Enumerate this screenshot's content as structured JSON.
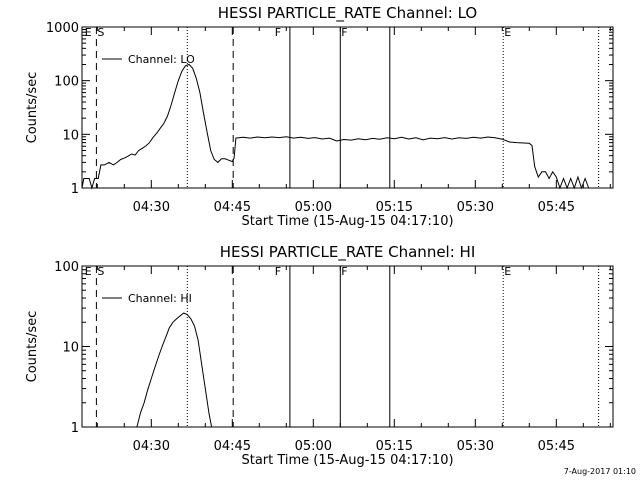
{
  "footer_stamp": "7-Aug-2017 01:10",
  "chart_data": [
    {
      "type": "line",
      "title": "HESSI PARTICLE_RATE Channel: LO",
      "xlabel": "Start Time (15-Aug-15 04:17:10)",
      "ylabel": "Counts/sec",
      "yscale": "log",
      "ylim": [
        1,
        1000
      ],
      "xlim": [
        "04:17:10",
        "05:55:30"
      ],
      "y_ticks": [
        "1",
        "10",
        "100",
        "1000"
      ],
      "x_ticks": [
        "04:30",
        "04:45",
        "05:00",
        "05:15",
        "05:30",
        "05:45"
      ],
      "legend": {
        "label": "Channel: LO",
        "position": "top-left"
      },
      "markers": [
        {
          "label": "E",
          "time": "04:17:30"
        },
        {
          "label": "S",
          "time": "04:19:50"
        },
        {
          "label": "F",
          "time": "04:52:40"
        },
        {
          "label": "F",
          "time": "05:05:00"
        },
        {
          "label": "E",
          "time": "05:35:10"
        }
      ],
      "vlines": [
        {
          "time": "04:19:50",
          "style": "dashed"
        },
        {
          "time": "04:36:40",
          "style": "dotted"
        },
        {
          "time": "04:45:10",
          "style": "dashed"
        },
        {
          "time": "04:55:40",
          "style": "solid"
        },
        {
          "time": "05:05:00",
          "style": "solid"
        },
        {
          "time": "05:14:10",
          "style": "solid"
        },
        {
          "time": "05:35:10",
          "style": "dotted"
        },
        {
          "time": "05:52:50",
          "style": "dotted"
        }
      ],
      "series": [
        {
          "name": "Channel: LO",
          "points": [
            [
              "04:17:10",
              1
            ],
            [
              "04:17:30",
              1.5
            ],
            [
              "04:18:30",
              1.5
            ],
            [
              "04:19:00",
              1
            ],
            [
              "04:19:30",
              1.5
            ],
            [
              "04:20:10",
              1.5
            ],
            [
              "04:20:40",
              2.7
            ],
            [
              "04:21:20",
              2.7
            ],
            [
              "04:22:10",
              3
            ],
            [
              "04:23:00",
              2.7
            ],
            [
              "04:23:40",
              3
            ],
            [
              "04:24:20",
              3.4
            ],
            [
              "04:25:00",
              3.6
            ],
            [
              "04:25:40",
              3.9
            ],
            [
              "04:26:20",
              4.3
            ],
            [
              "04:27:00",
              4.1
            ],
            [
              "04:27:40",
              5
            ],
            [
              "04:28:20",
              5.5
            ],
            [
              "04:29:00",
              6.1
            ],
            [
              "04:29:40",
              7
            ],
            [
              "04:30:20",
              8.8
            ],
            [
              "04:31:00",
              10.5
            ],
            [
              "04:31:40",
              13
            ],
            [
              "04:32:20",
              16
            ],
            [
              "04:33:00",
              22
            ],
            [
              "04:33:40",
              35
            ],
            [
              "04:34:20",
              60
            ],
            [
              "04:35:00",
              100
            ],
            [
              "04:35:40",
              150
            ],
            [
              "04:36:20",
              190
            ],
            [
              "04:37:00",
              200
            ],
            [
              "04:37:40",
              170
            ],
            [
              "04:38:20",
              110
            ],
            [
              "04:39:00",
              60
            ],
            [
              "04:39:40",
              25
            ],
            [
              "04:40:20",
              11
            ],
            [
              "04:41:00",
              5
            ],
            [
              "04:41:40",
              3.4
            ],
            [
              "04:42:20",
              3
            ],
            [
              "04:43:00",
              3.5
            ],
            [
              "04:43:40",
              3.5
            ],
            [
              "04:44:20",
              3.3
            ],
            [
              "04:45:00",
              3.1
            ],
            [
              "04:45:20",
              3.6
            ],
            [
              "04:45:40",
              8.5
            ],
            [
              "04:47:00",
              8.8
            ],
            [
              "04:48:20",
              8.5
            ],
            [
              "04:49:40",
              8.9
            ],
            [
              "04:51:00",
              8.6
            ],
            [
              "04:52:20",
              8.9
            ],
            [
              "04:53:40",
              8.7
            ],
            [
              "04:55:00",
              9
            ],
            [
              "04:56:20",
              8.5
            ],
            [
              "04:57:40",
              8.8
            ],
            [
              "04:59:00",
              8.4
            ],
            [
              "05:00:20",
              8.7
            ],
            [
              "05:01:40",
              8.2
            ],
            [
              "05:03:00",
              8.5
            ],
            [
              "05:04:20",
              7.5
            ],
            [
              "05:05:40",
              8
            ],
            [
              "05:07:00",
              7.8
            ],
            [
              "05:08:20",
              8.3
            ],
            [
              "05:09:40",
              7.9
            ],
            [
              "05:11:00",
              8.4
            ],
            [
              "05:12:20",
              8.1
            ],
            [
              "05:13:40",
              8.6
            ],
            [
              "05:15:00",
              8.3
            ],
            [
              "05:16:20",
              8.8
            ],
            [
              "05:17:40",
              8.2
            ],
            [
              "05:19:00",
              8.6
            ],
            [
              "05:20:20",
              7.9
            ],
            [
              "05:21:40",
              8.5
            ],
            [
              "05:23:00",
              8.3
            ],
            [
              "05:24:20",
              8.7
            ],
            [
              "05:25:40",
              8.2
            ],
            [
              "05:27:00",
              8.6
            ],
            [
              "05:28:20",
              8.4
            ],
            [
              "05:29:40",
              8.8
            ],
            [
              "05:31:00",
              8.5
            ],
            [
              "05:32:20",
              8.9
            ],
            [
              "05:33:40",
              8.6
            ],
            [
              "05:35:00",
              8.1
            ],
            [
              "05:36:20",
              7.2
            ],
            [
              "05:37:40",
              7
            ],
            [
              "05:39:00",
              6.9
            ],
            [
              "05:40:00",
              6.8
            ],
            [
              "05:40:30",
              6.2
            ],
            [
              "05:41:00",
              2.5
            ],
            [
              "05:41:40",
              1.6
            ],
            [
              "05:42:20",
              2
            ],
            [
              "05:43:00",
              2
            ],
            [
              "05:43:40",
              1.5
            ],
            [
              "05:44:20",
              2
            ],
            [
              "05:45:00",
              1.6
            ],
            [
              "05:45:40",
              1
            ],
            [
              "05:46:20",
              1.5
            ],
            [
              "05:47:00",
              1
            ],
            [
              "05:47:40",
              1.5
            ],
            [
              "05:48:20",
              1
            ],
            [
              "05:49:00",
              1.6
            ],
            [
              "05:49:40",
              1
            ],
            [
              "05:50:20",
              1.5
            ],
            [
              "05:51:00",
              1
            ]
          ]
        }
      ]
    },
    {
      "type": "line",
      "title": "HESSI PARTICLE_RATE Channel: HI",
      "xlabel": "Start Time (15-Aug-15 04:17:10)",
      "ylabel": "Counts/sec",
      "yscale": "log",
      "ylim": [
        1,
        100
      ],
      "xlim": [
        "04:17:10",
        "05:55:30"
      ],
      "y_ticks": [
        "1",
        "10",
        "100"
      ],
      "x_ticks": [
        "04:30",
        "04:45",
        "05:00",
        "05:15",
        "05:30",
        "05:45"
      ],
      "legend": {
        "label": "Channel: HI",
        "position": "top-left"
      },
      "markers": [
        {
          "label": "E",
          "time": "04:17:30"
        },
        {
          "label": "S",
          "time": "04:19:50"
        },
        {
          "label": "F",
          "time": "04:52:40"
        },
        {
          "label": "F",
          "time": "05:05:00"
        },
        {
          "label": "E",
          "time": "05:35:10"
        }
      ],
      "vlines": [
        {
          "time": "04:19:50",
          "style": "dashed"
        },
        {
          "time": "04:36:40",
          "style": "dotted"
        },
        {
          "time": "04:45:10",
          "style": "dashed"
        },
        {
          "time": "04:55:40",
          "style": "solid"
        },
        {
          "time": "05:05:00",
          "style": "solid"
        },
        {
          "time": "05:14:10",
          "style": "solid"
        },
        {
          "time": "05:35:10",
          "style": "dotted"
        },
        {
          "time": "05:52:50",
          "style": "dotted"
        }
      ],
      "series": [
        {
          "name": "Channel: HI",
          "points": [
            [
              "04:27:20",
              1
            ],
            [
              "04:28:00",
              1.5
            ],
            [
              "04:28:40",
              2
            ],
            [
              "04:29:20",
              2.9
            ],
            [
              "04:30:00",
              4
            ],
            [
              "04:30:40",
              5.5
            ],
            [
              "04:31:20",
              7.5
            ],
            [
              "04:32:00",
              10
            ],
            [
              "04:32:40",
              13
            ],
            [
              "04:33:20",
              17
            ],
            [
              "04:34:00",
              20
            ],
            [
              "04:34:40",
              22
            ],
            [
              "04:35:20",
              24
            ],
            [
              "04:36:00",
              26
            ],
            [
              "04:36:40",
              25
            ],
            [
              "04:37:20",
              22
            ],
            [
              "04:38:00",
              18
            ],
            [
              "04:38:40",
              12
            ],
            [
              "04:39:20",
              6
            ],
            [
              "04:40:00",
              3
            ],
            [
              "04:40:40",
              1.5
            ],
            [
              "04:41:10",
              1
            ]
          ]
        }
      ]
    }
  ]
}
